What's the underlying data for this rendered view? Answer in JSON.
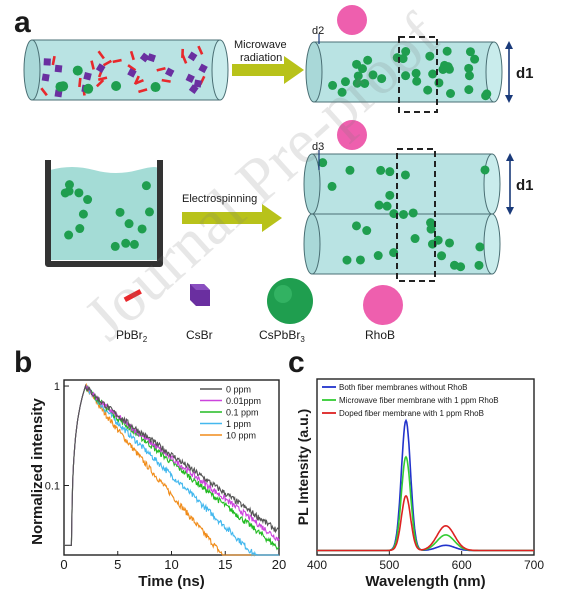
{
  "panel_a": {
    "letter": "a",
    "step1_label_line1": "Microwave",
    "step1_label_line2": "radiation",
    "step2_label": "Electrospinning",
    "d1_label": "d1",
    "d2_label": "d2",
    "d3_label": "d3",
    "legend": {
      "pbbr2": "PbBr",
      "pbbr2_sub": "2",
      "csbr": "CsBr",
      "cspbbr3": "CsPbBr",
      "cspbbr3_sub": "3",
      "rhob": "RhoB"
    },
    "colors": {
      "fiber": "#b9e3e3",
      "dot": "#1f9e4f",
      "pbbr2": "#e8282c",
      "csbr": "#6a2fa0",
      "rhob": "#ee5fae",
      "arrow": "#b8c21a"
    }
  },
  "panel_b": {
    "letter": "b"
  },
  "panel_c": {
    "letter": "c"
  },
  "watermark": "Journal Pre-proof",
  "chart_data": [
    {
      "type": "line",
      "panel": "b",
      "xlabel": "Time (ns)",
      "ylabel": "Normalized intensity",
      "xlim": [
        0,
        20
      ],
      "ylim": [
        0.02,
        1.15
      ],
      "yscale": "log",
      "xticks": [
        0,
        5,
        10,
        15,
        20
      ],
      "yticks": [
        {
          "value": 1,
          "label": "1"
        },
        {
          "value": 0.1,
          "label": "0.1"
        }
      ],
      "legend_position": "top-right",
      "series": [
        {
          "name": "0 ppm",
          "color": "#555555",
          "tau": 5.6
        },
        {
          "name": "0.01ppm",
          "color": "#cc44dd",
          "tau": 5.3
        },
        {
          "name": "0.1 ppm",
          "color": "#22bb22",
          "tau": 5.0
        },
        {
          "name": "1 ppm",
          "color": "#44b8ee",
          "tau": 4.2
        },
        {
          "name": "10 ppm",
          "color": "#f08c1a",
          "tau": 3.4
        }
      ]
    },
    {
      "type": "line",
      "panel": "c",
      "xlabel": "Wavelength (nm)",
      "ylabel": "PL Intensity (a.u.)",
      "xlim": [
        400,
        700
      ],
      "xticks": [
        400,
        500,
        600,
        700
      ],
      "legend_position": "top-left",
      "series": [
        {
          "name": "Both fiber membranes without RhoB",
          "color": "#2233cc",
          "peak_nm": 523,
          "peak": 1.0,
          "tail": 0.04
        },
        {
          "name": "Microwave fiber membrane with 1 ppm RhoB",
          "color": "#33cc33",
          "peak_nm": 523,
          "peak": 0.72,
          "tail": 0.12
        },
        {
          "name": "Doped fiber membrane with 1 ppm RhoB",
          "color": "#dd2222",
          "peak_nm": 523,
          "peak": 0.42,
          "tail": 0.19
        }
      ]
    }
  ]
}
